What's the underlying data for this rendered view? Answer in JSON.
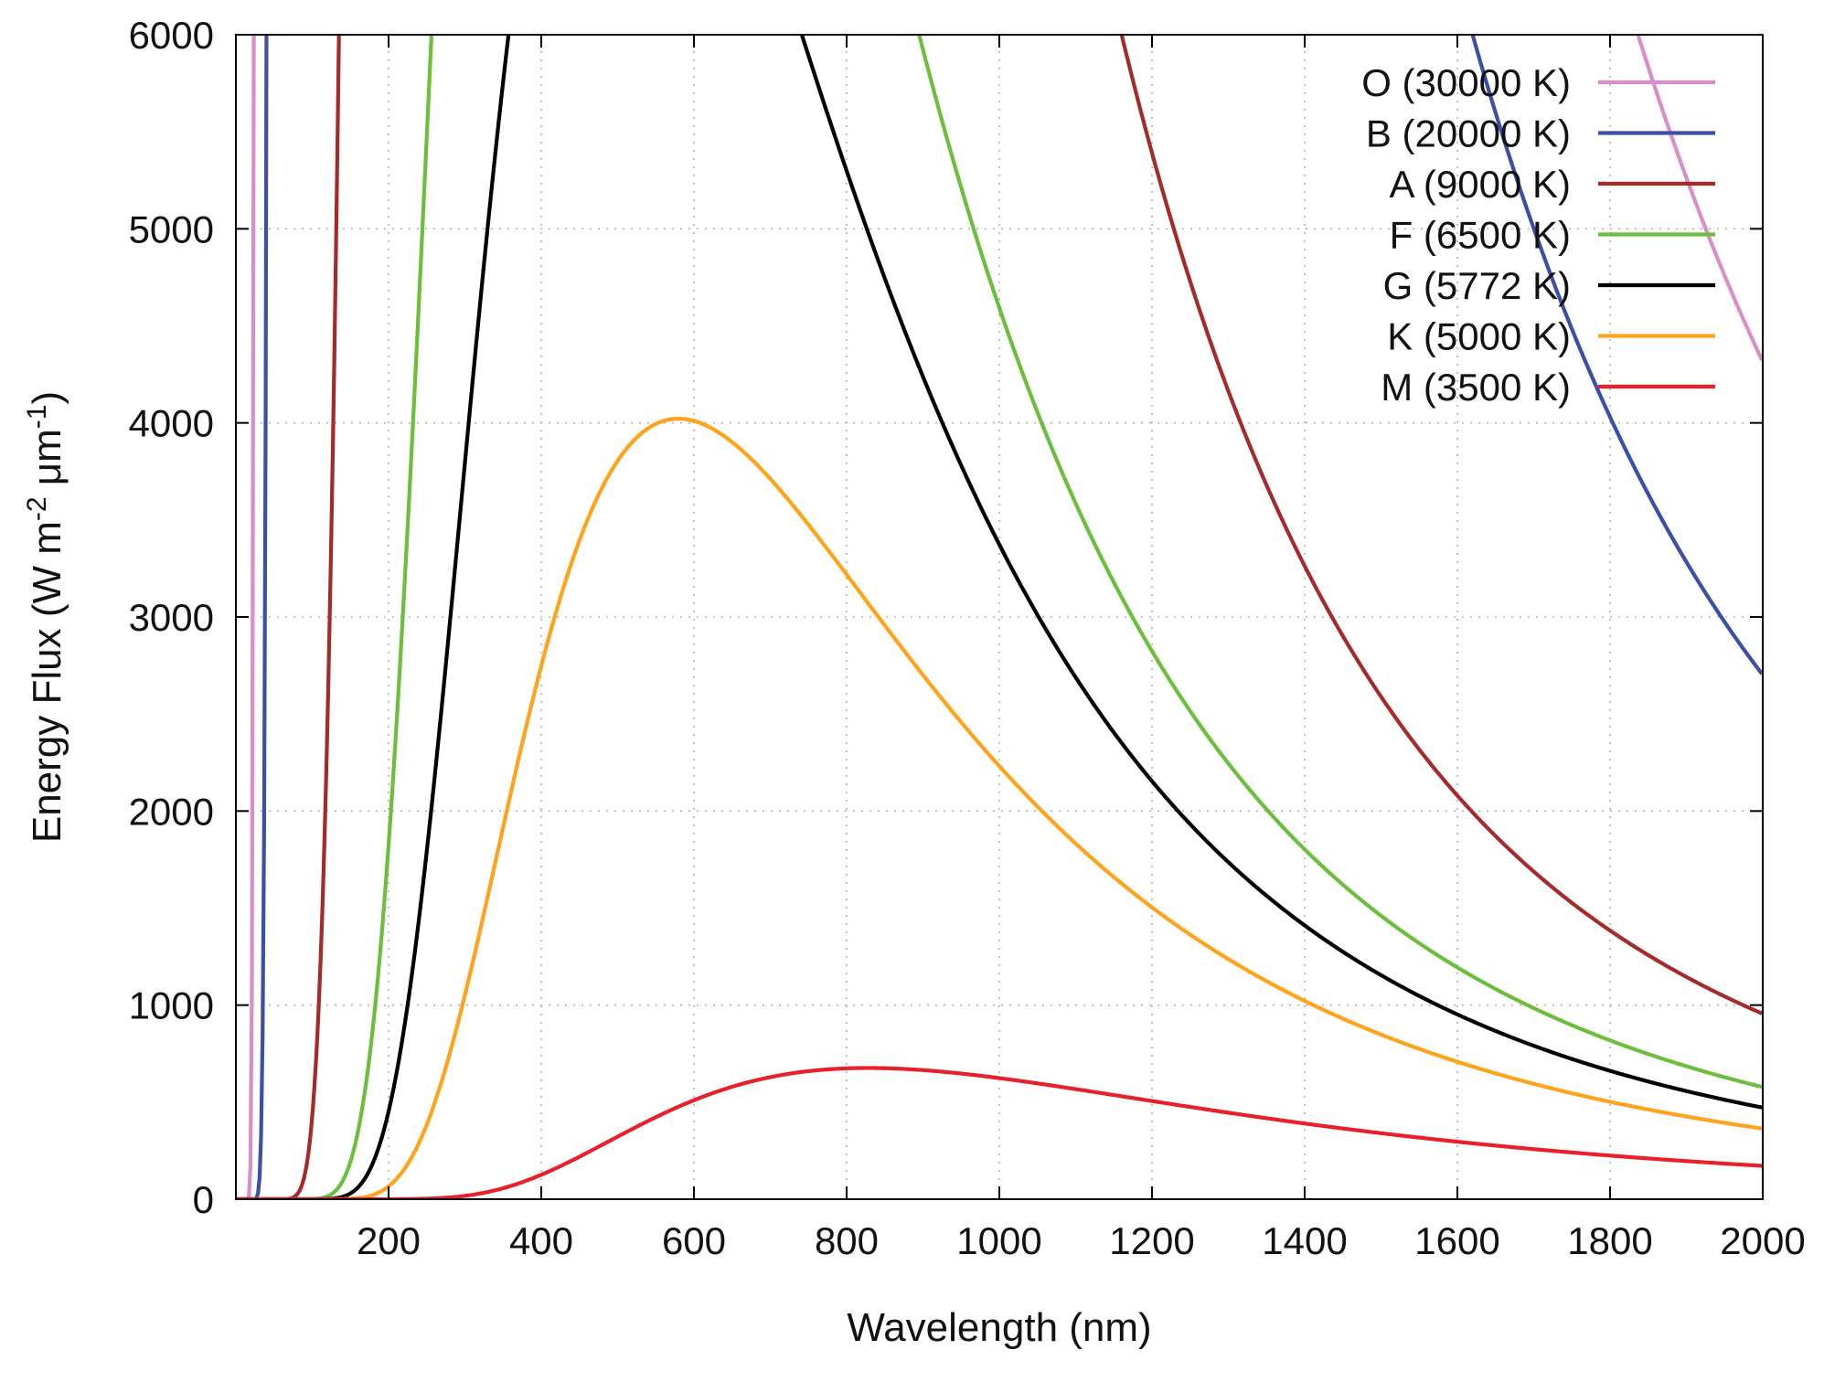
{
  "chart_data": {
    "type": "line",
    "title": "",
    "xlabel": "Wavelength (nm)",
    "ylabel": {
      "prefix": "Energy Flux (W m",
      "sup1": "-2",
      "middle": " μm",
      "sup2": "-1",
      "suffix": ")"
    },
    "xlim": [
      0,
      2000
    ],
    "ylim": [
      0,
      6000
    ],
    "x_ticks": [
      200,
      400,
      600,
      800,
      1000,
      1200,
      1400,
      1600,
      1800,
      2000
    ],
    "x_tick_labels": [
      "200",
      "400",
      "600",
      "800",
      "1000",
      "1200",
      "1400",
      "1600",
      "1800",
      "2000"
    ],
    "y_ticks": [
      0,
      1000,
      2000,
      3000,
      4000,
      5000,
      6000
    ],
    "y_tick_labels": [
      "0",
      "1000",
      "2000",
      "3000",
      "4000",
      "5000",
      "6000"
    ],
    "grid": true,
    "legend_position": "top-right",
    "series": [
      {
        "name": "O (30000 K)",
        "temperature_K": 30000,
        "color": "#d98fc6"
      },
      {
        "name": "B (20000 K)",
        "temperature_K": 20000,
        "color": "#3a4fa8"
      },
      {
        "name": "A (9000 K)",
        "temperature_K": 9000,
        "color": "#a52a2a"
      },
      {
        "name": "F (6500 K)",
        "temperature_K": 6500,
        "color": "#6cbf3c"
      },
      {
        "name": "G (5772 K)",
        "temperature_K": 5772,
        "color": "#000000"
      },
      {
        "name": "K (5000 K)",
        "temperature_K": 5000,
        "color": "#ffa31a"
      },
      {
        "name": "M (3500 K)",
        "temperature_K": 3500,
        "color": "#e8202a"
      }
    ]
  }
}
